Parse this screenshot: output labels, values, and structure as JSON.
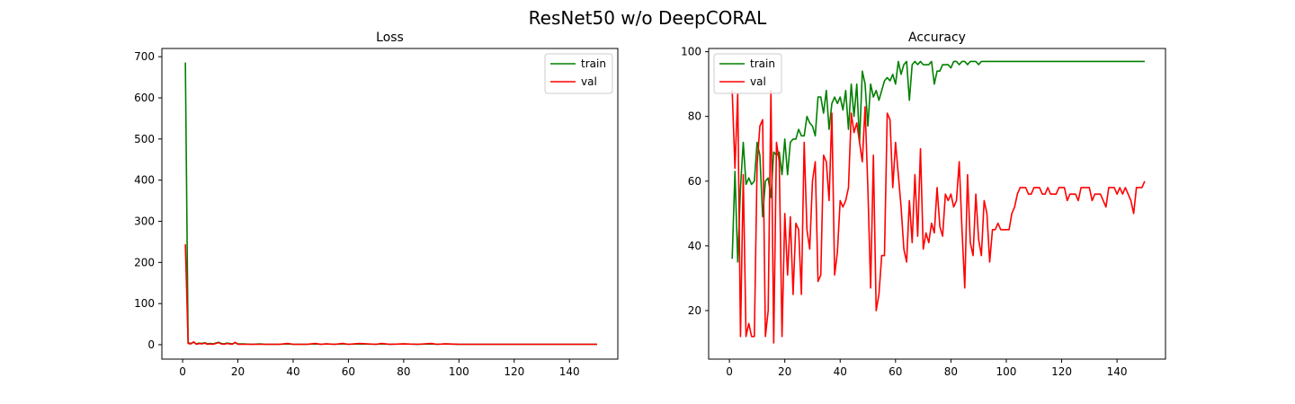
{
  "figure": {
    "title": "ResNet50 w/o DeepCORAL"
  },
  "chart_data": [
    {
      "type": "line",
      "title": "Loss",
      "xlabel": "",
      "ylabel": "",
      "xlim": [
        -7.5,
        157.5
      ],
      "ylim": [
        -35,
        720
      ],
      "xticks": [
        0,
        20,
        40,
        60,
        80,
        100,
        120,
        140
      ],
      "yticks": [
        0,
        100,
        200,
        300,
        400,
        500,
        600,
        700
      ],
      "grid": false,
      "legend": "top-right",
      "series": [
        {
          "name": "train",
          "color": "#008000",
          "x": [
            1,
            2,
            3,
            4,
            5,
            6,
            7,
            8,
            9,
            10,
            11,
            12,
            13,
            14,
            15,
            16,
            17,
            18,
            19,
            20,
            22,
            25,
            28,
            30,
            35,
            38,
            40,
            45,
            48,
            50,
            52,
            55,
            58,
            60,
            64,
            70,
            72,
            75,
            80,
            85,
            90,
            92,
            95,
            100,
            110,
            120,
            130,
            140,
            150
          ],
          "values": [
            686,
            5,
            3,
            6,
            2,
            4,
            3,
            5,
            2,
            3,
            2,
            4,
            6,
            3,
            2,
            4,
            3,
            2,
            5,
            2,
            2,
            1,
            2,
            1,
            1,
            2,
            1,
            1,
            2,
            1,
            2,
            1,
            2,
            1,
            2,
            1,
            2,
            1,
            2,
            1,
            2,
            1,
            2,
            1,
            1,
            1,
            1,
            1,
            1
          ]
        },
        {
          "name": "val",
          "color": "#ff0000",
          "x": [
            1,
            2,
            3,
            4,
            5,
            6,
            7,
            8,
            9,
            10,
            11,
            12,
            13,
            14,
            15,
            16,
            17,
            18,
            19,
            20,
            22,
            25,
            28,
            30,
            35,
            38,
            40,
            45,
            48,
            50,
            52,
            55,
            58,
            60,
            64,
            70,
            72,
            75,
            80,
            85,
            90,
            92,
            95,
            100,
            110,
            120,
            130,
            140,
            150
          ],
          "values": [
            244,
            3,
            2,
            7,
            1,
            3,
            2,
            4,
            1,
            2,
            1,
            3,
            5,
            2,
            1,
            3,
            2,
            1,
            6,
            1,
            1,
            1,
            1,
            1,
            1,
            3,
            1,
            1,
            3,
            1,
            2,
            1,
            3,
            1,
            3,
            1,
            3,
            1,
            2,
            1,
            3,
            1,
            2,
            1,
            1,
            1,
            1,
            1,
            1
          ]
        }
      ]
    },
    {
      "type": "line",
      "title": "Accuracy",
      "xlabel": "",
      "ylabel": "",
      "xlim": [
        -7.5,
        157.5
      ],
      "ylim": [
        5,
        101
      ],
      "xticks": [
        0,
        20,
        40,
        60,
        80,
        100,
        120,
        140
      ],
      "yticks": [
        20,
        40,
        60,
        80,
        100
      ],
      "grid": false,
      "legend": "top-left",
      "series": [
        {
          "name": "train",
          "color": "#008000",
          "x": [
            1,
            2,
            3,
            4,
            5,
            6,
            7,
            8,
            9,
            10,
            11,
            12,
            13,
            14,
            15,
            16,
            17,
            18,
            19,
            20,
            21,
            22,
            23,
            24,
            25,
            26,
            27,
            28,
            29,
            30,
            31,
            32,
            33,
            34,
            35,
            36,
            37,
            38,
            39,
            40,
            41,
            42,
            43,
            44,
            45,
            46,
            47,
            48,
            49,
            50,
            51,
            52,
            53,
            54,
            55,
            56,
            57,
            58,
            59,
            60,
            61,
            62,
            63,
            64,
            65,
            66,
            67,
            68,
            69,
            70,
            71,
            72,
            73,
            74,
            75,
            76,
            77,
            78,
            79,
            80,
            81,
            82,
            83,
            84,
            85,
            86,
            87,
            88,
            89,
            90,
            91,
            92,
            93,
            94,
            95,
            96,
            97,
            98,
            99,
            100,
            105,
            110,
            115,
            120,
            125,
            130,
            135,
            140,
            145,
            150
          ],
          "values": [
            36,
            63,
            35,
            58,
            72,
            59,
            61,
            59,
            60,
            72,
            68,
            49,
            60,
            61,
            55,
            69,
            68,
            69,
            62,
            73,
            62,
            72,
            73,
            73,
            76,
            74,
            74,
            80,
            78,
            77,
            74,
            86,
            86,
            81,
            88,
            76,
            84,
            86,
            84,
            86,
            82,
            88,
            76,
            90,
            80,
            90,
            72,
            94,
            90,
            77,
            90,
            86,
            88,
            85,
            88,
            91,
            92,
            91,
            93,
            90,
            97,
            93,
            96,
            97,
            85,
            96,
            97,
            96,
            97,
            96,
            96,
            96,
            97,
            90,
            94,
            94,
            96,
            96,
            96,
            95,
            97,
            97,
            96,
            97,
            97,
            96,
            97,
            97,
            97,
            96,
            97,
            97,
            97,
            97,
            97,
            97,
            97,
            97,
            97,
            97,
            97,
            97,
            97,
            97,
            97,
            97,
            97,
            97,
            97,
            97
          ]
        },
        {
          "name": "val",
          "color": "#ff0000",
          "x": [
            1,
            2,
            3,
            4,
            5,
            6,
            7,
            8,
            9,
            10,
            11,
            12,
            13,
            14,
            15,
            16,
            17,
            18,
            19,
            20,
            21,
            22,
            23,
            24,
            25,
            26,
            27,
            28,
            29,
            30,
            31,
            32,
            33,
            34,
            35,
            36,
            37,
            38,
            39,
            40,
            41,
            42,
            43,
            44,
            45,
            46,
            47,
            48,
            49,
            50,
            51,
            52,
            53,
            54,
            55,
            56,
            57,
            58,
            59,
            60,
            61,
            62,
            63,
            64,
            65,
            66,
            67,
            68,
            69,
            70,
            71,
            72,
            73,
            74,
            75,
            76,
            77,
            78,
            79,
            80,
            81,
            82,
            83,
            84,
            85,
            86,
            87,
            88,
            89,
            90,
            91,
            92,
            93,
            94,
            95,
            96,
            97,
            98,
            99,
            100,
            101,
            102,
            103,
            104,
            105,
            106,
            107,
            108,
            109,
            110,
            111,
            112,
            113,
            114,
            115,
            116,
            117,
            118,
            119,
            120,
            121,
            122,
            123,
            124,
            125,
            126,
            127,
            128,
            129,
            130,
            131,
            132,
            133,
            134,
            135,
            136,
            137,
            138,
            139,
            140,
            141,
            142,
            143,
            144,
            145,
            146,
            147,
            148,
            149,
            150
          ],
          "values": [
            88,
            64,
            87,
            12,
            62,
            12,
            16,
            12,
            12,
            65,
            77,
            79,
            12,
            20,
            88,
            10,
            72,
            66,
            12,
            50,
            31,
            49,
            25,
            47,
            45,
            25,
            72,
            45,
            39,
            60,
            66,
            29,
            31,
            68,
            66,
            54,
            81,
            31,
            38,
            54,
            52,
            54,
            58,
            81,
            75,
            78,
            72,
            66,
            83,
            58,
            27,
            68,
            20,
            25,
            37,
            37,
            81,
            79,
            58,
            72,
            62,
            52,
            39,
            35,
            54,
            41,
            62,
            43,
            70,
            39,
            44,
            41,
            47,
            44,
            58,
            46,
            43,
            56,
            54,
            56,
            52,
            54,
            66,
            45,
            27,
            62,
            41,
            37,
            56,
            42,
            37,
            54,
            50,
            35,
            45,
            45,
            47,
            45,
            45,
            45,
            45,
            50,
            52,
            56,
            58,
            58,
            58,
            56,
            56,
            58,
            58,
            58,
            56,
            56,
            58,
            56,
            56,
            56,
            58,
            58,
            58,
            54,
            56,
            56,
            56,
            54,
            58,
            58,
            58,
            58,
            54,
            56,
            56,
            56,
            54,
            52,
            58,
            58,
            58,
            56,
            58,
            56,
            58,
            56,
            54,
            50,
            58,
            58,
            58,
            60
          ]
        }
      ]
    }
  ]
}
